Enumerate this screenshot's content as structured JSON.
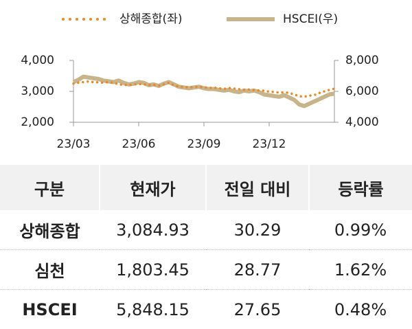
{
  "chart_data": {
    "type": "line",
    "categories": [
      "23/03",
      null,
      null,
      null,
      null,
      null,
      null,
      null,
      null,
      null,
      null,
      null,
      null,
      "23/06",
      null,
      null,
      null,
      null,
      null,
      null,
      null,
      null,
      null,
      null,
      null,
      null,
      "23/09",
      null,
      null,
      null,
      null,
      null,
      null,
      null,
      null,
      null,
      null,
      null,
      null,
      "23/12",
      null,
      null,
      null,
      null,
      null,
      null,
      null,
      null,
      null,
      null,
      null,
      null,
      null
    ],
    "series": [
      {
        "name": "상해종합(좌)",
        "color": "#e8892b",
        "style": "dotted",
        "values": [
          3250,
          3280,
          3300,
          3320,
          3300,
          3290,
          3280,
          3300,
          3270,
          3230,
          3210,
          3200,
          3220,
          3240,
          3230,
          3200,
          3210,
          3180,
          3230,
          3280,
          3200,
          3150,
          3140,
          3130,
          3140,
          3150,
          3130,
          3110,
          3120,
          3100,
          3080,
          3110,
          3090,
          3070,
          3050,
          3060,
          3040,
          3030,
          3020,
          2990,
          2980,
          2960,
          2970,
          2950,
          2900,
          2840,
          2830,
          2860,
          2880,
          2950,
          3000,
          3050,
          3085
        ]
      },
      {
        "name": "HSCEI(우)",
        "color": "#c8b48a",
        "style": "solid",
        "axis": "y2",
        "values": [
          6600,
          6750,
          6950,
          6900,
          6850,
          6800,
          6700,
          6650,
          6600,
          6700,
          6550,
          6450,
          6500,
          6600,
          6550,
          6400,
          6450,
          6350,
          6500,
          6600,
          6450,
          6300,
          6250,
          6200,
          6250,
          6300,
          6200,
          6150,
          6150,
          6100,
          6050,
          6100,
          6000,
          5950,
          6050,
          6000,
          6050,
          5950,
          5800,
          5750,
          5700,
          5650,
          5750,
          5600,
          5450,
          5150,
          5050,
          5200,
          5350,
          5500,
          5650,
          5800,
          5850
        ]
      }
    ],
    "ylim": [
      2000,
      4000
    ],
    "yticks": [
      {
        "value": 2000,
        "label": "2,000"
      },
      {
        "value": 3000,
        "label": "3,000"
      },
      {
        "value": 4000,
        "label": "4,000"
      }
    ],
    "y2lim": [
      4000,
      8000
    ],
    "y2ticks": [
      {
        "value": 4000,
        "label": "4,000"
      },
      {
        "value": 6000,
        "label": "6,000"
      },
      {
        "value": 8000,
        "label": "8,000"
      }
    ],
    "legend": "top"
  },
  "table": {
    "header": [
      "구분",
      "현재가",
      "전일 대비",
      "등락률"
    ],
    "rows": [
      [
        "상해종합",
        "3,084.93",
        "30.29",
        "0.99%"
      ],
      [
        "심천",
        "1,803.45",
        "28.77",
        "1.62%"
      ],
      [
        "HSCEI",
        "5,848.15",
        "27.65",
        "0.48%"
      ]
    ]
  }
}
